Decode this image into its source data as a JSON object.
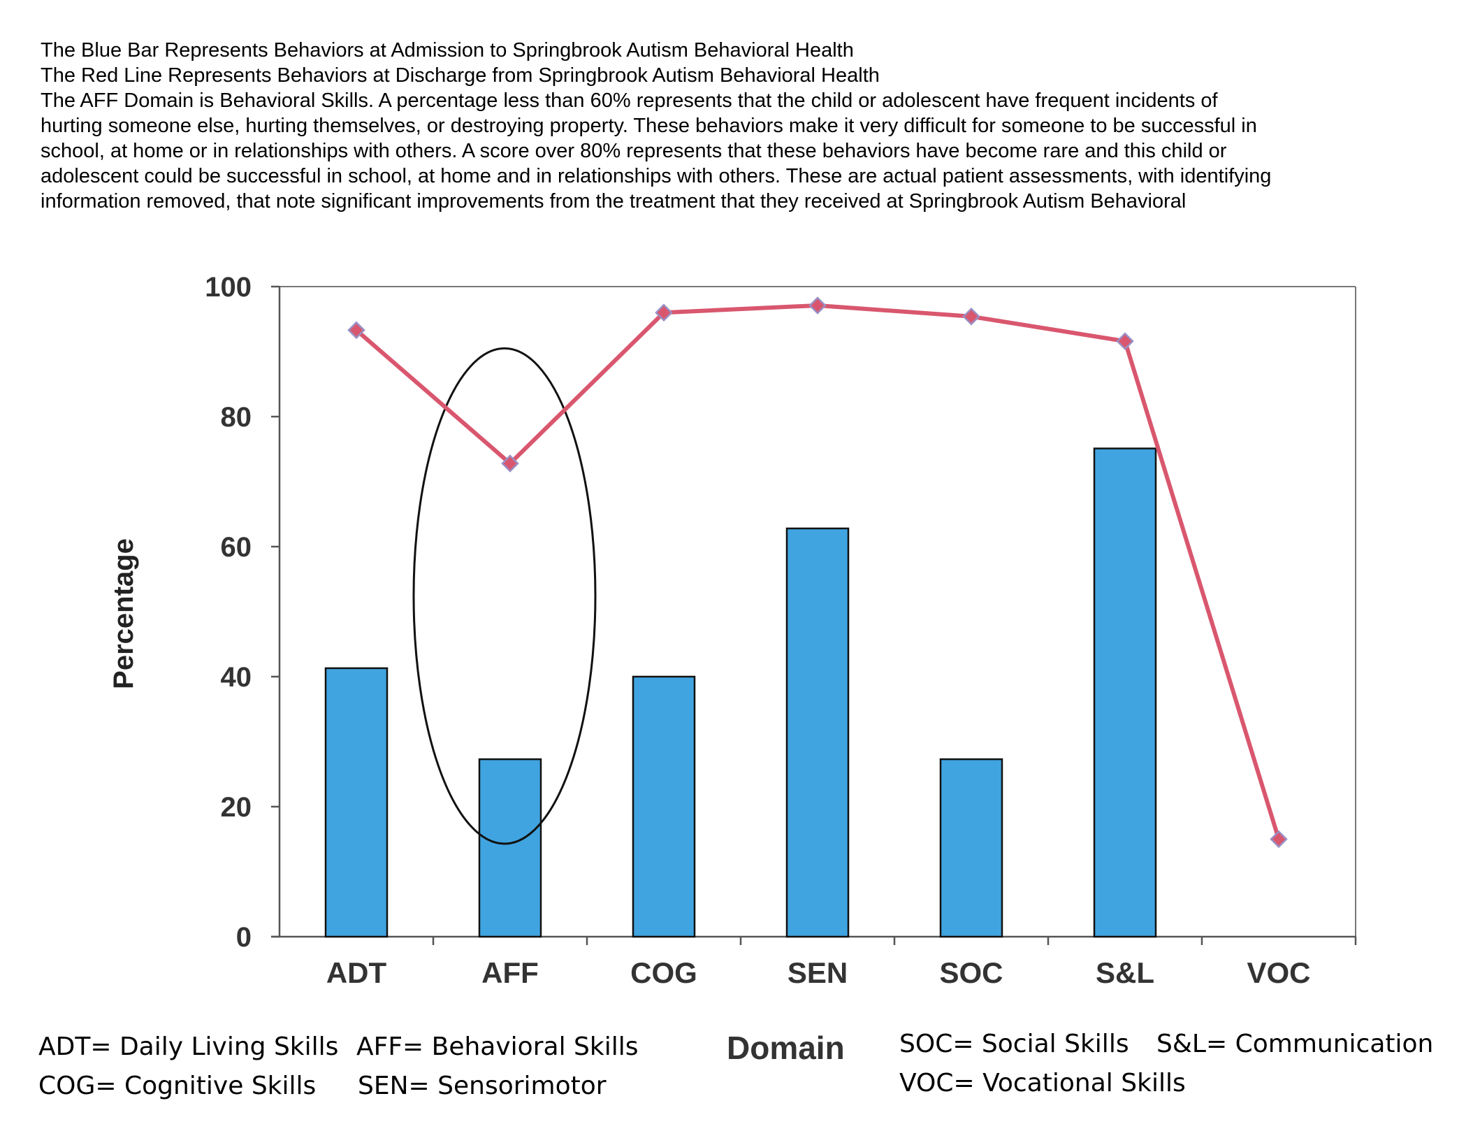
{
  "description": [
    "The Blue Bar Represents Behaviors at Admission to Springbrook Autism Behavioral Health",
    "The Red Line Represents Behaviors at Discharge from Springbrook Autism Behavioral Health",
    "The AFF Domain is Behavioral Skills. A percentage less than 60% represents that the child or adolescent have frequent incidents of",
    "hurting someone else, hurting themselves, or destroying property. These behaviors make it very difficult for someone to be successful in",
    "school, at home or in relationships with others.  A score over 80% represents that these behaviors have become rare and this child or",
    "adolescent could be successful in school, at home and in relationships with others. These are actual patient assessments, with identifying",
    "information removed,  that note significant improvements from the treatment that they received at Springbrook Autism Behavioral"
  ],
  "legend_defs": {
    "adt": "ADT= Daily Living Skills",
    "aff": "AFF= Behavioral Skills",
    "cog": "COG= Cognitive Skills",
    "sen": "SEN= Sensorimotor",
    "soc": "SOC= Social Skills",
    "sl": "S&L= Communication",
    "voc": "VOC= Vocational Skills"
  },
  "chart_data": {
    "type": "bar",
    "title": "",
    "xlabel": "Domain",
    "ylabel": "Percentage",
    "ylim": [
      0,
      100
    ],
    "yticks": [
      0,
      20,
      40,
      60,
      80,
      100
    ],
    "categories": [
      "ADT",
      "AFF",
      "COG",
      "SEN",
      "SOC",
      "S&L",
      "VOC"
    ],
    "series": [
      {
        "kind": "bar",
        "values": [
          41.3,
          27.3,
          40,
          62.8,
          27.3,
          75.1,
          0
        ],
        "color": "#40a4e0"
      },
      {
        "kind": "line",
        "values": [
          93.3,
          72.8,
          96,
          97.1,
          95.4,
          91.6,
          15
        ],
        "color": "#d9576e",
        "marker_color": "#c76a9a"
      }
    ],
    "highlight": "AFF",
    "grid": false
  }
}
